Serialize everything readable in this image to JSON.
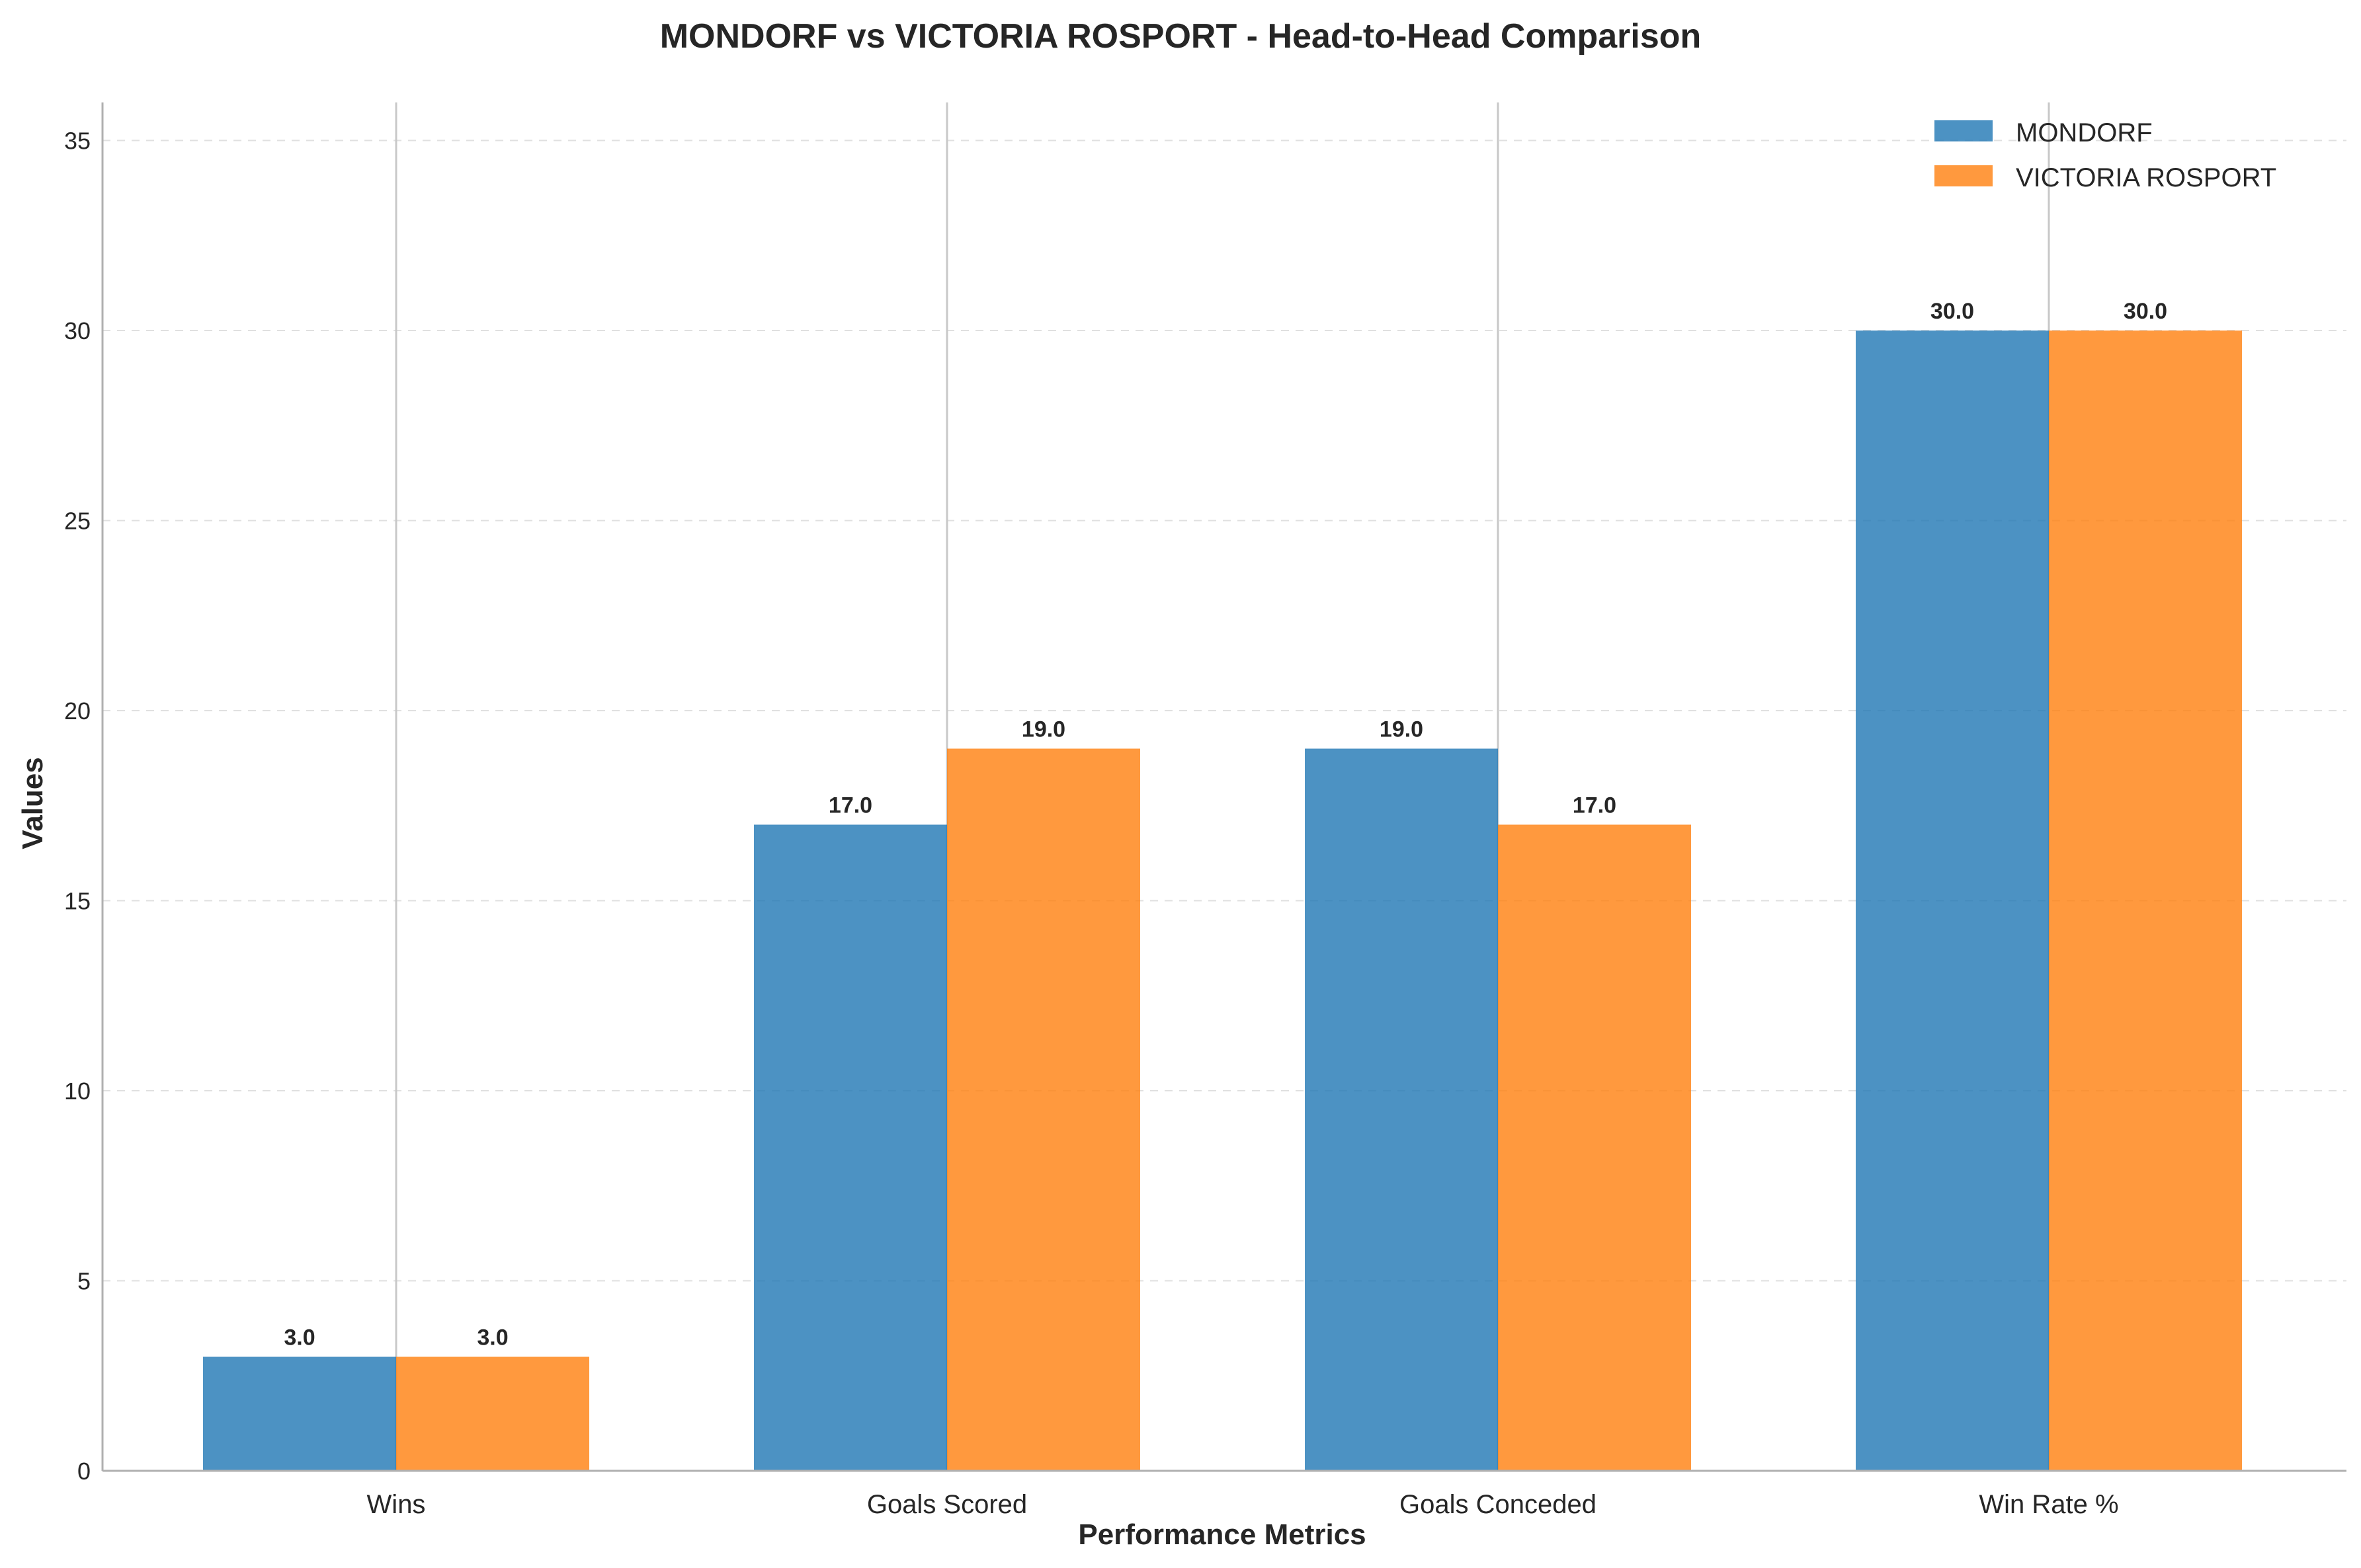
{
  "chart_data": {
    "type": "bar",
    "title": "MONDORF vs VICTORIA ROSPORT - Head-to-Head Comparison",
    "xlabel": "Performance Metrics",
    "ylabel": "Values",
    "categories": [
      "Wins",
      "Goals Scored",
      "Goals Conceded",
      "Win Rate %"
    ],
    "series": [
      {
        "name": "MONDORF",
        "values": [
          3.0,
          17.0,
          19.0,
          30.0
        ],
        "color": "#1f77b4"
      },
      {
        "name": "VICTORIA ROSPORT",
        "values": [
          3.0,
          19.0,
          17.0,
          30.0
        ],
        "color": "#ff7f0e"
      }
    ],
    "value_labels": {
      "MONDORF": [
        "3.0",
        "17.0",
        "19.0",
        "30.0"
      ],
      "VICTORIA ROSPORT": [
        "3.0",
        "19.0",
        "17.0",
        "30.0"
      ]
    },
    "ylim": [
      0,
      36
    ],
    "yticks": [
      0,
      5,
      10,
      15,
      20,
      25,
      30,
      35
    ],
    "grid": "y-dashed",
    "legend": "top-right"
  }
}
